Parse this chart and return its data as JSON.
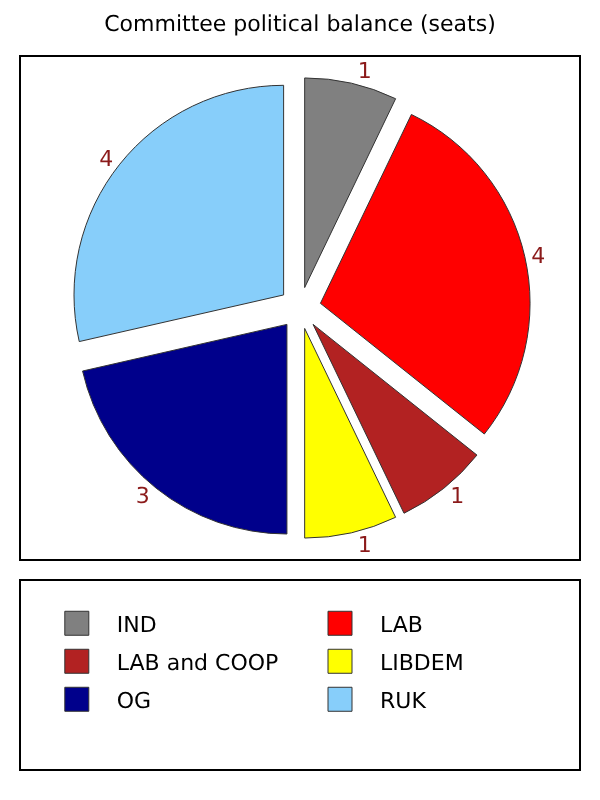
{
  "chart_data": {
    "type": "pie",
    "title": "Committee political balance (seats)",
    "categories": [
      "IND",
      "LAB",
      "LAB and COOP",
      "LIBDEM",
      "OG",
      "RUK"
    ],
    "values": [
      1,
      4,
      1,
      1,
      3,
      4
    ],
    "colors": [
      "#808080",
      "#ff0000",
      "#b22222",
      "#ffff00",
      "#00008b",
      "#87cefa"
    ],
    "data_labels": true,
    "legend": "bottom"
  }
}
